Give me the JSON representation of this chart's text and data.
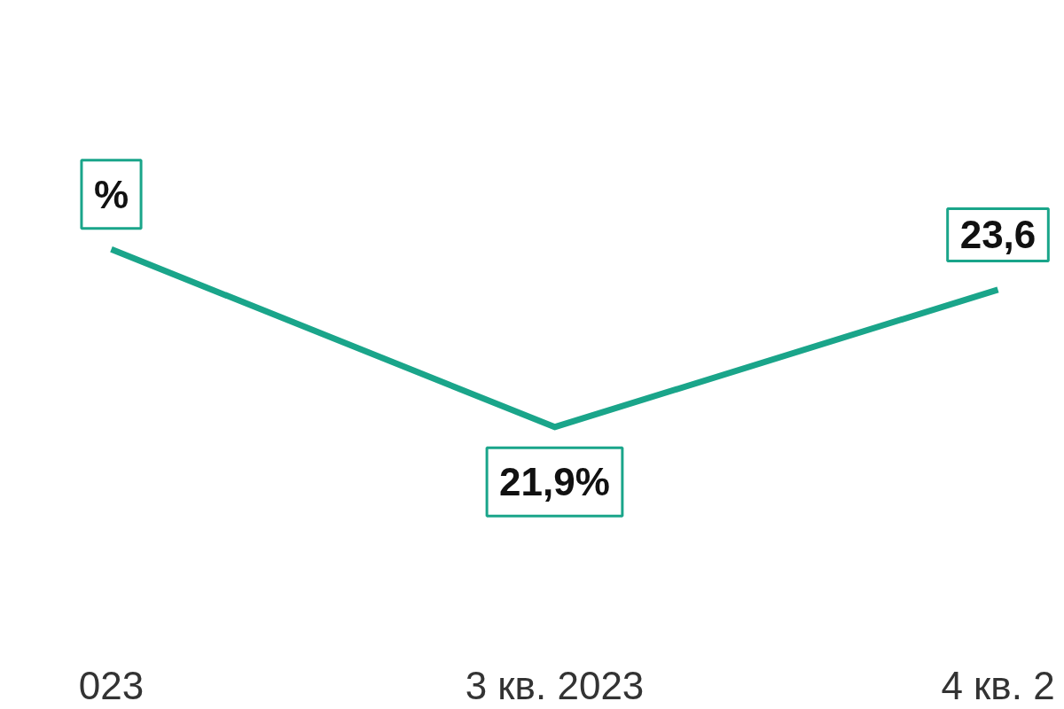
{
  "chart_data": {
    "type": "line",
    "categories": [
      "023",
      "3 кв. 2023",
      "4 кв. 2"
    ],
    "series": [
      {
        "color": "#1aa58a",
        "values": [
          24.1,
          21.9,
          23.6
        ],
        "value_labels": [
          "%",
          "21,9%",
          "23,6"
        ]
      }
    ],
    "line_style": "solid"
  }
}
